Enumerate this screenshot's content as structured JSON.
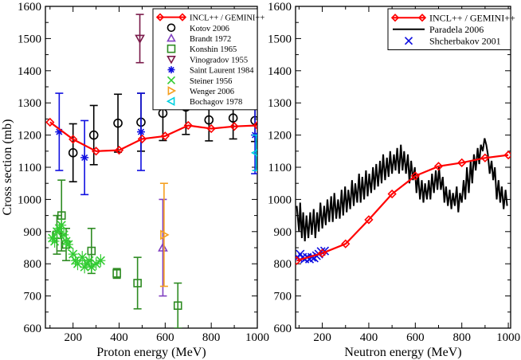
{
  "chart_data": [
    {
      "type": "scatter",
      "title": "",
      "xlabel": "Proton energy (MeV)",
      "ylabel": "Cross section (mb)",
      "xlim": [
        80,
        1000
      ],
      "ylim": [
        600,
        1600
      ],
      "xticks": [
        200,
        400,
        600,
        800,
        1000
      ],
      "yticks": [
        600,
        700,
        800,
        900,
        1000,
        1100,
        1200,
        1300,
        1400,
        1500,
        1600
      ],
      "legend_position": "top-right",
      "series": [
        {
          "name": "INCL++ / GEMINI++",
          "kind": "line-marker",
          "marker": "diamond",
          "color": "#ff0000",
          "points": [
            [
              100,
              1240
            ],
            [
              200,
              1187
            ],
            [
              300,
              1150
            ],
            [
              400,
              1153
            ],
            [
              500,
              1188
            ],
            [
              600,
              1197
            ],
            [
              700,
              1230
            ],
            [
              800,
              1220
            ],
            [
              900,
              1227
            ],
            [
              1000,
              1230
            ]
          ]
        },
        {
          "name": "Kotov 2006",
          "kind": "marker",
          "marker": "circle",
          "color": "#000000",
          "points": [
            [
              200,
              1145,
              90
            ],
            [
              290,
              1200,
              92
            ],
            [
              395,
              1237,
              90
            ],
            [
              495,
              1240,
              90
            ],
            [
              590,
              1268,
              85
            ],
            [
              690,
              1287,
              85
            ],
            [
              790,
              1247,
              65
            ],
            [
              895,
              1253,
              65
            ],
            [
              990,
              1245,
              65
            ]
          ]
        },
        {
          "name": "Brandt 1972",
          "kind": "marker",
          "marker": "triangle-up",
          "color": "#8040c0",
          "points": [
            [
              590,
              850,
              150
            ]
          ]
        },
        {
          "name": "Konshin 1965",
          "kind": "marker",
          "marker": "square",
          "color": "#2e8b22",
          "points": [
            [
              130,
              890,
              60
            ],
            [
              150,
              950,
              110
            ],
            [
              170,
              860,
              50
            ],
            [
              280,
              840,
              70
            ],
            [
              390,
              770,
              15
            ],
            [
              480,
              740,
              80
            ],
            [
              655,
              670,
              70
            ]
          ]
        },
        {
          "name": "Vinogradov 1955",
          "kind": "marker",
          "marker": "triangle-down",
          "color": "#7a1a4a",
          "points": [
            [
              490,
              1500,
              75
            ]
          ]
        },
        {
          "name": "Saint Laurent 1984",
          "kind": "marker",
          "marker": "star",
          "color": "#1010e0",
          "points": [
            [
              140,
              1210,
              120
            ],
            [
              250,
              1130,
              115
            ],
            [
              495,
              1210,
              120
            ],
            [
              990,
              1200,
              120
            ]
          ]
        },
        {
          "name": "Steiner 1956",
          "kind": "marker",
          "marker": "x",
          "color": "#33cc33",
          "points": [
            [
              110,
              880
            ],
            [
              120,
              870
            ],
            [
              130,
              900
            ],
            [
              140,
              910
            ],
            [
              150,
              920
            ],
            [
              160,
              890
            ],
            [
              170,
              870
            ],
            [
              180,
              860
            ],
            [
              200,
              830
            ],
            [
              210,
              810
            ],
            [
              220,
              800
            ],
            [
              240,
              820
            ],
            [
              250,
              790
            ],
            [
              260,
              800
            ],
            [
              270,
              810
            ],
            [
              280,
              790
            ],
            [
              300,
              800
            ],
            [
              320,
              810
            ]
          ]
        },
        {
          "name": "Wenger 2006",
          "kind": "marker",
          "marker": "triangle-right",
          "color": "#f5a020",
          "points": [
            [
              595,
              890,
              160
            ]
          ]
        },
        {
          "name": "Bochagov 1978",
          "kind": "marker",
          "marker": "triangle-left",
          "color": "#00d0e0",
          "points": [
            [
              995,
              1145,
              55
            ]
          ]
        }
      ]
    },
    {
      "type": "line",
      "title": "",
      "xlabel": "Neutron energy (MeV)",
      "ylabel": "",
      "xlim": [
        85,
        1010
      ],
      "ylim": [
        600,
        1600
      ],
      "xticks": [
        200,
        400,
        600,
        800,
        1000
      ],
      "yticks": [
        600,
        700,
        800,
        900,
        1000,
        1100,
        1200,
        1300,
        1400,
        1500,
        1600
      ],
      "legend_position": "top-right",
      "series": [
        {
          "name": "INCL++ / GEMINI++",
          "kind": "line-marker",
          "marker": "diamond",
          "color": "#ff0000",
          "points": [
            [
              90,
              810
            ],
            [
              200,
              833
            ],
            [
              300,
              862
            ],
            [
              400,
              937
            ],
            [
              500,
              1017
            ],
            [
              600,
              1073
            ],
            [
              700,
              1103
            ],
            [
              800,
              1114
            ],
            [
              900,
              1129
            ],
            [
              1000,
              1138
            ]
          ]
        },
        {
          "name": "Paradela 2006",
          "kind": "line",
          "color": "#000000",
          "points": [
            [
              90,
              980
            ],
            [
              100,
              900
            ],
            [
              105,
              990
            ],
            [
              112,
              880
            ],
            [
              118,
              960
            ],
            [
              125,
              870
            ],
            [
              132,
              950
            ],
            [
              140,
              880
            ],
            [
              148,
              960
            ],
            [
              155,
              890
            ],
            [
              163,
              970
            ],
            [
              170,
              880
            ],
            [
              178,
              960
            ],
            [
              185,
              900
            ],
            [
              192,
              990
            ],
            [
              200,
              910
            ],
            [
              208,
              980
            ],
            [
              215,
              920
            ],
            [
              222,
              1000
            ],
            [
              230,
              930
            ],
            [
              238,
              1010
            ],
            [
              245,
              930
            ],
            [
              252,
              1020
            ],
            [
              260,
              940
            ],
            [
              268,
              1000
            ],
            [
              275,
              940
            ],
            [
              283,
              1030
            ],
            [
              290,
              950
            ],
            [
              298,
              1040
            ],
            [
              305,
              960
            ],
            [
              312,
              1030
            ],
            [
              320,
              970
            ],
            [
              328,
              1060
            ],
            [
              335,
              980
            ],
            [
              342,
              1050
            ],
            [
              350,
              990
            ],
            [
              358,
              1080
            ],
            [
              365,
              990
            ],
            [
              372,
              1070
            ],
            [
              380,
              1000
            ],
            [
              388,
              1090
            ],
            [
              395,
              1010
            ],
            [
              402,
              1080
            ],
            [
              410,
              1020
            ],
            [
              418,
              1100
            ],
            [
              425,
              1030
            ],
            [
              432,
              1110
            ],
            [
              440,
              1040
            ],
            [
              448,
              1120
            ],
            [
              455,
              1050
            ],
            [
              462,
              1140
            ],
            [
              470,
              1060
            ],
            [
              478,
              1130
            ],
            [
              485,
              1070
            ],
            [
              492,
              1150
            ],
            [
              500,
              1080
            ],
            [
              508,
              1140
            ],
            [
              515,
              1090
            ],
            [
              522,
              1160
            ],
            [
              530,
              1080
            ],
            [
              538,
              1170
            ],
            [
              545,
              1090
            ],
            [
              552,
              1150
            ],
            [
              560,
              1080
            ],
            [
              568,
              1140
            ],
            [
              575,
              1050
            ],
            [
              582,
              1120
            ],
            [
              590,
              1060
            ],
            [
              598,
              1100
            ],
            [
              605,
              1020
            ],
            [
              612,
              1080
            ],
            [
              620,
              1000
            ],
            [
              628,
              1060
            ],
            [
              635,
              990
            ],
            [
              642,
              1050
            ],
            [
              650,
              1000
            ],
            [
              658,
              1060
            ],
            [
              665,
              1000
            ],
            [
              672,
              1080
            ],
            [
              680,
              1020
            ],
            [
              688,
              1090
            ],
            [
              695,
              1030
            ],
            [
              702,
              1100
            ],
            [
              710,
              1030
            ],
            [
              718,
              1070
            ],
            [
              725,
              990
            ],
            [
              732,
              1040
            ],
            [
              740,
              980
            ],
            [
              748,
              1030
            ],
            [
              755,
              970
            ],
            [
              762,
              1020
            ],
            [
              770,
              980
            ],
            [
              778,
              1040
            ],
            [
              785,
              960
            ],
            [
              792,
              1020
            ],
            [
              800,
              990
            ],
            [
              808,
              1060
            ],
            [
              815,
              1000
            ],
            [
              822,
              1100
            ],
            [
              830,
              1020
            ],
            [
              838,
              1120
            ],
            [
              845,
              1050
            ],
            [
              852,
              1140
            ],
            [
              860,
              1090
            ],
            [
              868,
              1160
            ],
            [
              875,
              1110
            ],
            [
              882,
              1170
            ],
            [
              890,
              1150
            ],
            [
              898,
              1190
            ],
            [
              905,
              1170
            ],
            [
              912,
              1140
            ],
            [
              920,
              1080
            ],
            [
              928,
              1120
            ],
            [
              935,
              1060
            ],
            [
              942,
              1100
            ],
            [
              950,
              1000
            ],
            [
              958,
              1060
            ],
            [
              965,
              990
            ],
            [
              972,
              1040
            ],
            [
              980,
              970
            ],
            [
              988,
              1030
            ],
            [
              995,
              980
            ]
          ]
        },
        {
          "name": "Shcherbakov 2001",
          "kind": "marker",
          "marker": "x",
          "color": "#1010e0",
          "points": [
            [
              95,
              820
            ],
            [
              105,
              830
            ],
            [
              115,
              820
            ],
            [
              125,
              815
            ],
            [
              135,
              820
            ],
            [
              145,
              815
            ],
            [
              155,
              820
            ],
            [
              165,
              818
            ],
            [
              175,
              825
            ],
            [
              185,
              830
            ],
            [
              195,
              838
            ],
            [
              210,
              840
            ]
          ]
        }
      ]
    }
  ]
}
